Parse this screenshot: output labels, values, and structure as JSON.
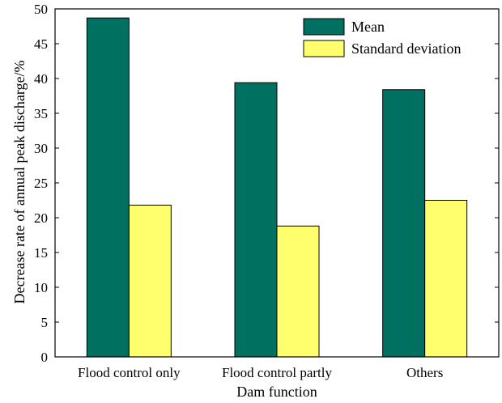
{
  "chart_data": {
    "type": "bar",
    "title": "",
    "xlabel": "Dam function",
    "ylabel": "Decrease rate of annual peak discharge/%",
    "categories": [
      "Flood control only",
      "Flood control partly",
      "Others"
    ],
    "series": [
      {
        "name": "Mean",
        "values": [
          48.7,
          39.4,
          38.4
        ],
        "color": "#007060"
      },
      {
        "name": "Standard deviation",
        "values": [
          21.8,
          18.8,
          22.5
        ],
        "color": "#ffff6e"
      }
    ],
    "ylim": [
      0,
      50
    ],
    "yticks": [
      "0",
      "5",
      "10",
      "15",
      "20",
      "25",
      "30",
      "35",
      "40",
      "45",
      "50"
    ],
    "grid": false,
    "legend_position": "top-right"
  }
}
